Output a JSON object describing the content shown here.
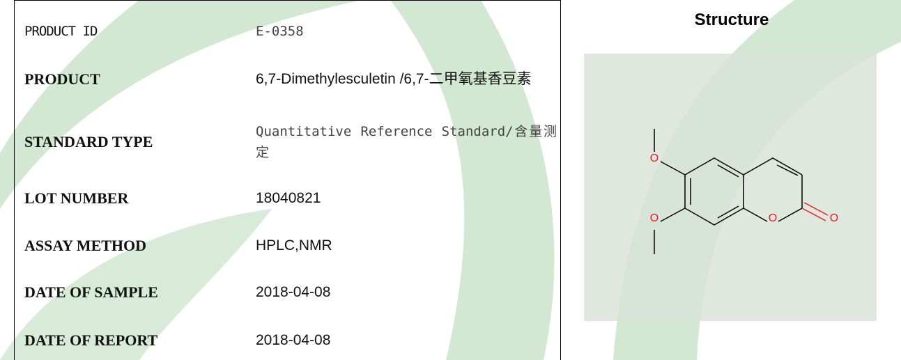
{
  "table": {
    "rows": [
      [
        "PRODUCT ID",
        "E-0358"
      ],
      [
        "PRODUCT",
        "6,7-Dimethylesculetin /6,7-二甲氧基香豆素"
      ],
      [
        "STANDARD TYPE",
        "Quantitative Reference Standard/含量测定"
      ],
      [
        "LOT NUMBER",
        "18040821"
      ],
      [
        "ASSAY METHOD",
        "HPLC,NMR"
      ],
      [
        "DATE OF SAMPLE",
        "2018-04-08"
      ],
      [
        "DATE OF REPORT",
        "2018-04-08"
      ]
    ]
  },
  "structure": {
    "title": "Structure",
    "atom_labels": [
      "O",
      "O",
      "O",
      "O"
    ]
  }
}
